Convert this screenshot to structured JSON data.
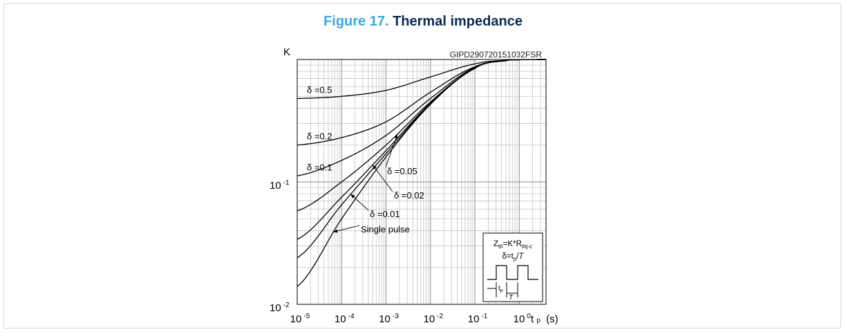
{
  "figure": {
    "number": "Figure 17.",
    "title": "Thermal impedance"
  },
  "chart_data": {
    "type": "line",
    "code": "GIPD290720151032FSR",
    "xlabel": "t",
    "xlabel_sub": "p",
    "xlabel_unit": "(s)",
    "ylabel": "K",
    "x_scale": "log",
    "y_scale": "log",
    "xlim": [
      1e-05,
      4
    ],
    "ylim": [
      0.01,
      1.0
    ],
    "grid": true,
    "x_ticks": [
      {
        "value": 1e-05,
        "base": "10",
        "exp": "-5"
      },
      {
        "value": 0.0001,
        "base": "10",
        "exp": "-4"
      },
      {
        "value": 0.001,
        "base": "10",
        "exp": "-3"
      },
      {
        "value": 0.01,
        "base": "10",
        "exp": "-2"
      },
      {
        "value": 0.1,
        "base": "10",
        "exp": "-1"
      },
      {
        "value": 1,
        "base": "10",
        "exp": "0"
      }
    ],
    "y_ticks": [
      {
        "value": 0.01,
        "base": "10",
        "exp": "-2"
      },
      {
        "value": 0.1,
        "base": "10",
        "exp": "-1"
      }
    ],
    "x": [
      1e-05,
      0.0001,
      0.001,
      0.01,
      0.1,
      0.5,
      1,
      4
    ],
    "series": [
      {
        "name": "δ =0.5",
        "values": [
          0.48,
          0.5,
          0.56,
          0.72,
          0.92,
          0.985,
          0.995,
          1.0
        ]
      },
      {
        "name": "δ =0.2",
        "values": [
          0.2,
          0.23,
          0.31,
          0.54,
          0.87,
          0.98,
          0.995,
          1.0
        ]
      },
      {
        "name": "δ =0.1",
        "values": [
          0.112,
          0.15,
          0.24,
          0.48,
          0.86,
          0.98,
          0.995,
          1.0
        ]
      },
      {
        "name": "δ =0.05",
        "values": [
          0.058,
          0.1,
          0.2,
          0.45,
          0.85,
          0.978,
          0.994,
          1.0
        ]
      },
      {
        "name": "δ =0.02",
        "values": [
          0.034,
          0.075,
          0.18,
          0.44,
          0.85,
          0.978,
          0.994,
          1.0
        ]
      },
      {
        "name": "δ =0.01",
        "values": [
          0.024,
          0.065,
          0.17,
          0.435,
          0.845,
          0.977,
          0.994,
          1.0
        ]
      },
      {
        "name": "Single pulse",
        "values": [
          0.014,
          0.05,
          0.16,
          0.43,
          0.845,
          0.977,
          0.994,
          1.0
        ]
      }
    ],
    "inset": {
      "formula": "Zth=K*Rthj-c",
      "duty": "δ=tp/T",
      "tp": "tp",
      "T": "T"
    }
  }
}
